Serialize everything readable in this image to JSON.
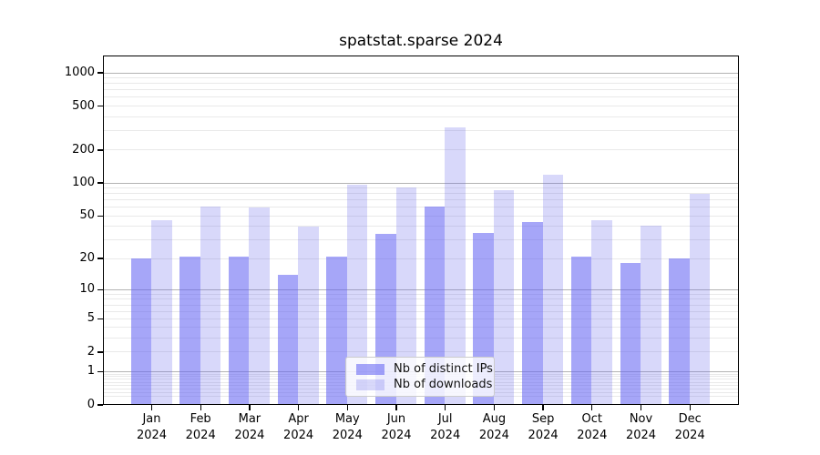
{
  "title": "spatstat.sparse 2024",
  "chart_data": {
    "type": "bar",
    "title": "spatstat.sparse 2024",
    "categories": [
      "Jan 2024",
      "Feb 2024",
      "Mar 2024",
      "Apr 2024",
      "May 2024",
      "Jun 2024",
      "Jul 2024",
      "Aug 2024",
      "Sep 2024",
      "Oct 2024",
      "Nov 2024",
      "Dec 2024"
    ],
    "series": [
      {
        "name": "Nb of distinct IPs",
        "values": [
          20,
          21,
          21,
          14,
          21,
          34,
          61,
          35,
          44,
          21,
          18,
          20
        ],
        "color": "rgba(97,97,242,0.56)",
        "flat_color": "#a8a8f8"
      },
      {
        "name": "Nb of downloads",
        "values": [
          46,
          61,
          60,
          40,
          96,
          91,
          318,
          86,
          120,
          46,
          41,
          80
        ],
        "color": "rgba(100,100,235,0.25)",
        "flat_color": "#d9d9f8"
      }
    ],
    "xlabel": "",
    "ylabel": "",
    "yscale": "log1p",
    "yticks": [
      0,
      1,
      2,
      5,
      10,
      20,
      50,
      100,
      200,
      500,
      1000
    ],
    "ylim": [
      0,
      1430
    ],
    "grid": true,
    "legend_position": "lower center inside",
    "colors": {
      "grid_major": "#b3b3b3",
      "grid_minor": "#e9e9e9",
      "axis": "#000000",
      "background": "#ffffff"
    }
  }
}
